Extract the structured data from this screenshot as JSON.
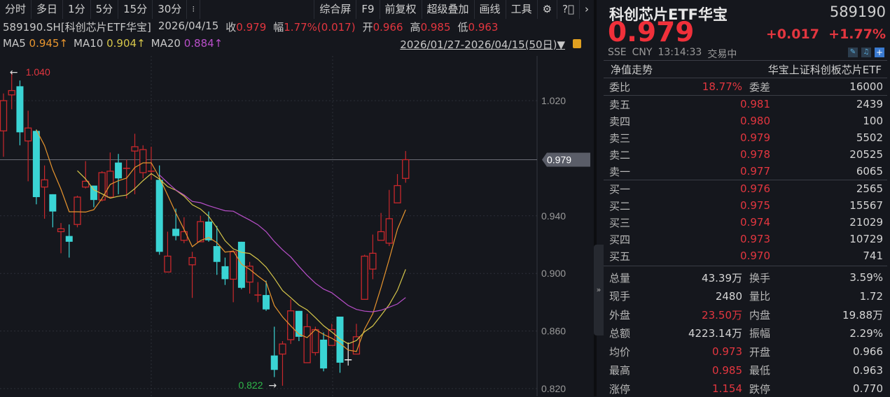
{
  "toolbar": {
    "left": [
      "分时",
      "多日",
      "1分",
      "5分",
      "15分",
      "30分"
    ],
    "more": "⁝",
    "right": [
      "综合屏",
      "F9",
      "前复权",
      "超级叠加",
      "画线",
      "工具"
    ],
    "icons": [
      "gear-icon",
      "help-icon",
      "chevron-right-icon"
    ]
  },
  "info": {
    "symbol": "589190.SH[科创芯片ETF华宝]",
    "date": "2026/04/15",
    "close_label": "收",
    "close": "0.979",
    "change_label": "幅",
    "change": "1.77%(0.017)",
    "open_label": "开",
    "open": "0.966",
    "high_label": "高",
    "high": "0.985",
    "low_label": "低",
    "low": "0.963"
  },
  "ma": {
    "ma5_label": "MA5",
    "ma5": "0.945↑",
    "ma10_label": "MA10",
    "ma10": "0.904↑",
    "ma20_label": "MA20",
    "ma20": "0.884↑",
    "range": "2026/01/27-2026/04/15(50日)▼"
  },
  "colors": {
    "up": "#c8282c",
    "down": "#3ad4d4",
    "ma5": "#e8952e",
    "ma10": "#d6c64a",
    "ma20": "#b84fc9",
    "price_red": "#e3363f",
    "green": "#2fb84a"
  },
  "chart_data": {
    "type": "candlestick",
    "yticks": [
      "1.020",
      "0.940",
      "0.900",
      "0.860",
      "0.820"
    ],
    "ylim": [
      0.8155,
      1.0485
    ],
    "current_price_label": "0.979",
    "max_label": "1.040",
    "min_label": "0.822",
    "candles": [
      [
        0.999,
        1.02,
        1.025,
        0.981
      ],
      [
        1.024,
        1.027,
        1.04,
        1.014
      ],
      [
        1.03,
        0.998,
        1.034,
        0.989
      ],
      [
        0.992,
        1.001,
        1.013,
        0.964
      ],
      [
        0.999,
        0.953,
        1.0,
        0.948
      ],
      [
        0.96,
        0.965,
        0.975,
        0.938
      ],
      [
        0.955,
        0.943,
        0.955,
        0.932
      ],
      [
        0.929,
        0.931,
        0.935,
        0.914
      ],
      [
        0.926,
        0.922,
        0.934,
        0.911
      ],
      [
        0.934,
        0.953,
        0.954,
        0.932
      ],
      [
        0.96,
        0.964,
        0.978,
        0.959
      ],
      [
        0.961,
        0.951,
        0.961,
        0.946
      ],
      [
        0.951,
        0.97,
        0.971,
        0.95
      ],
      [
        0.953,
        0.971,
        0.984,
        0.953
      ],
      [
        0.977,
        0.966,
        0.983,
        0.955
      ],
      [
        0.973,
        0.973,
        0.979,
        0.952
      ],
      [
        0.985,
        0.988,
        0.997,
        0.955
      ],
      [
        0.97,
        0.986,
        0.989,
        0.966
      ],
      [
        0.971,
        0.971,
        0.988,
        0.965
      ],
      [
        0.965,
        0.915,
        0.975,
        0.913
      ],
      [
        0.901,
        0.912,
        0.929,
        0.901
      ],
      [
        0.931,
        0.926,
        0.945,
        0.923
      ],
      [
        0.923,
        0.929,
        0.939,
        0.921
      ],
      [
        0.906,
        0.911,
        0.915,
        0.883
      ],
      [
        0.922,
        0.936,
        0.94,
        0.922
      ],
      [
        0.936,
        0.923,
        0.943,
        0.922
      ],
      [
        0.919,
        0.908,
        0.933,
        0.899
      ],
      [
        0.905,
        0.896,
        0.911,
        0.892
      ],
      [
        0.896,
        0.915,
        0.916,
        0.88
      ],
      [
        0.922,
        0.89,
        0.922,
        0.889
      ],
      [
        0.894,
        0.905,
        0.908,
        0.886
      ],
      [
        0.885,
        0.885,
        0.894,
        0.88
      ],
      [
        0.885,
        0.875,
        0.895,
        0.874
      ],
      [
        0.843,
        0.833,
        0.863,
        0.828
      ],
      [
        0.844,
        0.851,
        0.853,
        0.822
      ],
      [
        0.854,
        0.874,
        0.882,
        0.851
      ],
      [
        0.874,
        0.856,
        0.874,
        0.853
      ],
      [
        0.838,
        0.863,
        0.872,
        0.838
      ],
      [
        0.845,
        0.861,
        0.863,
        0.843
      ],
      [
        0.854,
        0.834,
        0.859,
        0.832
      ],
      [
        0.85,
        0.861,
        0.865,
        0.85
      ],
      [
        0.87,
        0.838,
        0.87,
        0.831
      ],
      [
        0.84,
        0.84,
        0.852,
        0.836
      ],
      [
        0.844,
        0.856,
        0.865,
        0.844
      ],
      [
        0.882,
        0.912,
        0.913,
        0.882
      ],
      [
        0.903,
        0.914,
        0.927,
        0.896
      ],
      [
        0.923,
        0.929,
        0.942,
        0.923
      ],
      [
        0.921,
        0.938,
        0.958,
        0.919
      ],
      [
        0.949,
        0.961,
        0.969,
        0.949
      ],
      [
        0.966,
        0.979,
        0.985,
        0.963
      ]
    ]
  },
  "quote": {
    "name": "科创芯片ETF华宝",
    "code": "589190",
    "price": "0.979",
    "change": "+0.017",
    "change_pct": "+1.77%",
    "exchange": "SSE",
    "currency": "CNY",
    "time": "13:14:33",
    "status": "交易中",
    "nav_label": "净值走势",
    "fund_name": "华宝上证科创板芯片ETF",
    "wb_label": "委比",
    "wb": "18.77%",
    "wc_label": "委差",
    "wc": "16000"
  },
  "asks": [
    {
      "label": "卖五",
      "price": "0.981",
      "vol": "2439"
    },
    {
      "label": "卖四",
      "price": "0.980",
      "vol": "100"
    },
    {
      "label": "卖三",
      "price": "0.979",
      "vol": "5502"
    },
    {
      "label": "卖二",
      "price": "0.978",
      "vol": "20525"
    },
    {
      "label": "卖一",
      "price": "0.977",
      "vol": "6065"
    }
  ],
  "bids": [
    {
      "label": "买一",
      "price": "0.976",
      "vol": "2565"
    },
    {
      "label": "买二",
      "price": "0.975",
      "vol": "15567"
    },
    {
      "label": "买三",
      "price": "0.974",
      "vol": "21029"
    },
    {
      "label": "买四",
      "price": "0.973",
      "vol": "10729"
    },
    {
      "label": "买五",
      "price": "0.970",
      "vol": "741"
    }
  ],
  "stats": [
    {
      "l1": "总量",
      "v1": "43.39万",
      "l2": "换手",
      "v2": "3.59%"
    },
    {
      "l1": "现手",
      "v1": "2480",
      "l2": "量比",
      "v2": "1.72"
    },
    {
      "l1": "外盘",
      "v1": "23.50万",
      "l2": "内盘",
      "v2": "19.88万"
    },
    {
      "l1": "总额",
      "v1": "4223.14万",
      "l2": "振幅",
      "v2": "2.29%"
    },
    {
      "l1": "均价",
      "v1": "0.973",
      "l2": "开盘",
      "v2": "0.966"
    },
    {
      "l1": "最高",
      "v1": "0.985",
      "l2": "最低",
      "v2": "0.963"
    },
    {
      "l1": "涨停",
      "v1": "1.154",
      "l2": "跌停",
      "v2": "0.770"
    }
  ]
}
